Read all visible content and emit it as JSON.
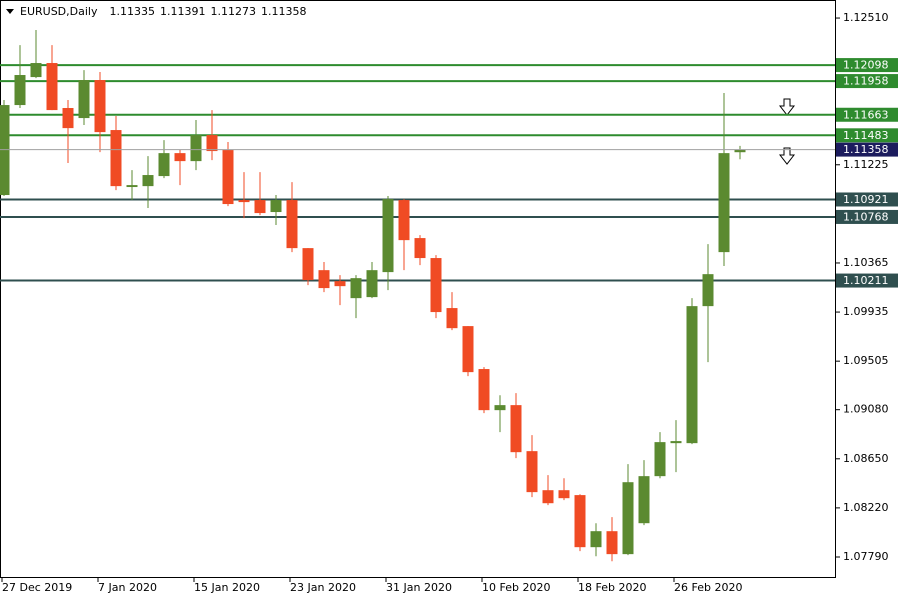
{
  "chart_data": {
    "type": "candlestick",
    "title": "EURUSD,Daily",
    "categories": [
      "27 Dec 2019",
      null,
      null,
      null,
      null,
      null,
      "7 Jan 2020",
      null,
      null,
      null,
      null,
      null,
      "15 Jan 2020",
      null,
      null,
      null,
      null,
      null,
      "23 Jan 2020",
      null,
      null,
      null,
      null,
      null,
      "31 Jan 2020",
      null,
      null,
      null,
      null,
      null,
      "10 Feb 2020",
      null,
      null,
      null,
      null,
      null,
      "18 Feb 2020",
      null,
      null,
      null,
      null,
      null,
      "26 Feb 2020",
      null,
      null,
      null,
      null
    ],
    "open": [
      1.1096,
      1.11748,
      1.11993,
      1.12116,
      1.11722,
      1.11634,
      1.11967,
      1.11529,
      1.1103,
      1.11038,
      1.11126,
      1.11327,
      1.11257,
      1.11485,
      1.11354,
      1.10916,
      1.10916,
      1.10811,
      1.10916,
      1.10495,
      1.10302,
      1.10206,
      1.10057,
      1.10066,
      1.10285,
      1.10916,
      1.10583,
      1.10408,
      1.0997,
      1.09812,
      1.09436,
      1.09076,
      1.0912,
      1.08717,
      1.08375,
      1.08375,
      1.08332,
      1.07876,
      1.08016,
      1.07815,
      1.08086,
      1.08498,
      1.08787,
      1.08787,
      1.09987,
      1.1046,
      1.11335
    ],
    "high": [
      1.11792,
      1.12273,
      1.12405,
      1.12273,
      1.11792,
      1.12054,
      1.12037,
      1.11652,
      1.11178,
      1.11301,
      1.11441,
      1.11354,
      1.11617,
      1.11704,
      1.11424,
      1.11161,
      1.11161,
      1.1096,
      1.11073,
      1.10495,
      1.10373,
      1.10259,
      1.10259,
      1.10373,
      1.10951,
      1.10924,
      1.10609,
      1.10434,
      1.1011,
      1.09812,
      1.09453,
      1.09207,
      1.09225,
      1.08857,
      1.08507,
      1.0848,
      1.0834,
      1.08086,
      1.08139,
      1.08603,
      1.08638,
      1.08883,
      1.08989,
      1.10057,
      1.1053,
      1.11853,
      1.11391
    ],
    "low": [
      1.10951,
      1.11722,
      1.11984,
      1.11704,
      1.1124,
      1.11573,
      1.11336,
      1.11003,
      1.10916,
      1.10846,
      1.11108,
      1.11047,
      1.11178,
      1.11266,
      1.10863,
      1.10758,
      1.10784,
      1.10697,
      1.1046,
      1.10171,
      1.1011,
      1.09996,
      1.09882,
      1.10057,
      1.10127,
      1.10302,
      1.10346,
      1.09882,
      1.09777,
      1.09374,
      1.0905,
      1.08883,
      1.08656,
      1.08314,
      1.08244,
      1.08288,
      1.07841,
      1.07797,
      1.07753,
      1.07806,
      1.08069,
      1.0848,
      1.08533,
      1.08778,
      1.09497,
      1.10338,
      1.11273
    ],
    "close": [
      1.11748,
      1.12011,
      1.12116,
      1.11704,
      1.11546,
      1.11967,
      1.11511,
      1.11038,
      1.11047,
      1.11135,
      1.11327,
      1.11257,
      1.11485,
      1.11345,
      1.10881,
      1.10898,
      1.10802,
      1.10916,
      1.10495,
      1.10215,
      1.10145,
      1.10162,
      1.10232,
      1.10302,
      1.10924,
      1.10565,
      1.10408,
      1.09935,
      1.09794,
      1.09409,
      1.09076,
      1.0912,
      1.08708,
      1.08358,
      1.08261,
      1.08305,
      1.07876,
      1.08016,
      1.07815,
      1.08445,
      1.08498,
      1.08796,
      1.08805,
      1.09987,
      1.10267,
      1.11327,
      1.11358
    ],
    "up_color": "#5b8a30",
    "down_color": "#f04b24",
    "levels": [
      {
        "value": 1.12098,
        "color": "#2e8b2e"
      },
      {
        "value": 1.11958,
        "color": "#2e8b2e"
      },
      {
        "value": 1.11663,
        "color": "#2e8b2e"
      },
      {
        "value": 1.11483,
        "color": "#2e8b2e"
      },
      {
        "value": 1.10921,
        "color": "#2f4f4f"
      },
      {
        "value": 1.10768,
        "color": "#2f4f4f"
      },
      {
        "value": 1.10211,
        "color": "#2f4f4f"
      }
    ],
    "last_price_color": "#1c1c5e",
    "ylim": [
      1.07606,
      1.12668
    ],
    "yticks": [
      {
        "value": 1.1251,
        "label": "1.12510"
      },
      1.11225,
      1.10365,
      1.09935,
      1.09505,
      {
        "value": 1.0908,
        "label": "1.09080"
      },
      {
        "value": 1.0865,
        "label": "1.08650"
      },
      {
        "value": 1.0822,
        "label": "1.08220"
      },
      {
        "value": 1.0779,
        "label": "1.07790"
      }
    ]
  }
}
